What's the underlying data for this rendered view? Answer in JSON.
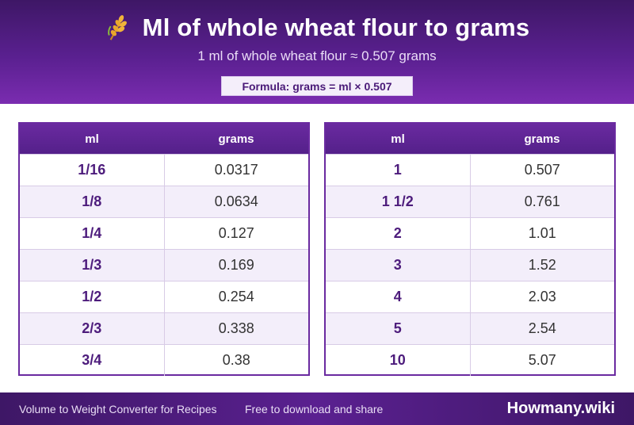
{
  "header": {
    "title": "Ml of whole wheat flour to grams",
    "subtitle": "1 ml of whole wheat flour ≈ 0.507 grams",
    "formula": "Formula: grams = ml × 0.507",
    "icon": "wheat-icon"
  },
  "tables": [
    {
      "columns": [
        "ml",
        "grams"
      ],
      "rows": [
        [
          "1/16",
          "0.0317"
        ],
        [
          "1/8",
          "0.0634"
        ],
        [
          "1/4",
          "0.127"
        ],
        [
          "1/3",
          "0.169"
        ],
        [
          "1/2",
          "0.254"
        ],
        [
          "2/3",
          "0.338"
        ],
        [
          "3/4",
          "0.38"
        ]
      ]
    },
    {
      "columns": [
        "ml",
        "grams"
      ],
      "rows": [
        [
          "1",
          "0.507"
        ],
        [
          "1 1/2",
          "0.761"
        ],
        [
          "2",
          "1.01"
        ],
        [
          "3",
          "1.52"
        ],
        [
          "4",
          "2.03"
        ],
        [
          "5",
          "2.54"
        ],
        [
          "10",
          "5.07"
        ]
      ]
    }
  ],
  "footer": {
    "left": "Volume to Weight Converter for Recipes",
    "middle": "Free to download and share",
    "brand": "Howmany.wiki"
  },
  "colors": {
    "primary": "#5a2090",
    "accent_text": "#4d1c7c",
    "row_alt": "#f3eefa"
  }
}
